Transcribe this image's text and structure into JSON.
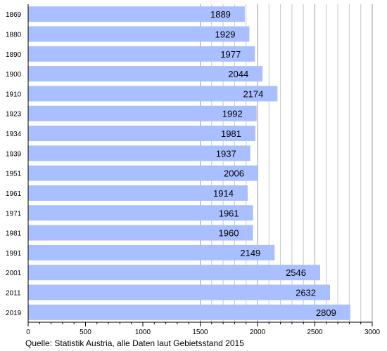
{
  "chart_data": {
    "type": "bar",
    "orientation": "horizontal",
    "categories": [
      "1869",
      "1880",
      "1890",
      "1900",
      "1910",
      "1923",
      "1934",
      "1939",
      "1951",
      "1961",
      "1971",
      "1981",
      "1991",
      "2001",
      "2011",
      "2019"
    ],
    "values": [
      1889,
      1929,
      1977,
      2044,
      2174,
      1992,
      1981,
      1937,
      2006,
      1914,
      1961,
      1960,
      2149,
      2546,
      2632,
      2809
    ],
    "value_labels": [
      "1889",
      "1929",
      "1977",
      "2044",
      "2174",
      "1992",
      "1981",
      "1937",
      "2006",
      "1914",
      "1961",
      "1960",
      "2149",
      "2546",
      "2632",
      "2809"
    ],
    "xlim": [
      0,
      3000
    ],
    "xticks": [
      0,
      500,
      1000,
      1500,
      2000,
      2500,
      3000
    ],
    "xtick_labels": [
      "0",
      "500",
      "1000",
      "1500",
      "2000",
      "2500",
      "3000"
    ],
    "minor_tick_step": 100,
    "grid": "vertical minor lines from 1500 to 3000",
    "bar_color": "#aabfff",
    "title": "",
    "xlabel": "",
    "ylabel": ""
  },
  "source_text": "Quelle: Statistik Austria, alle Daten laut Gebietsstand 2015"
}
